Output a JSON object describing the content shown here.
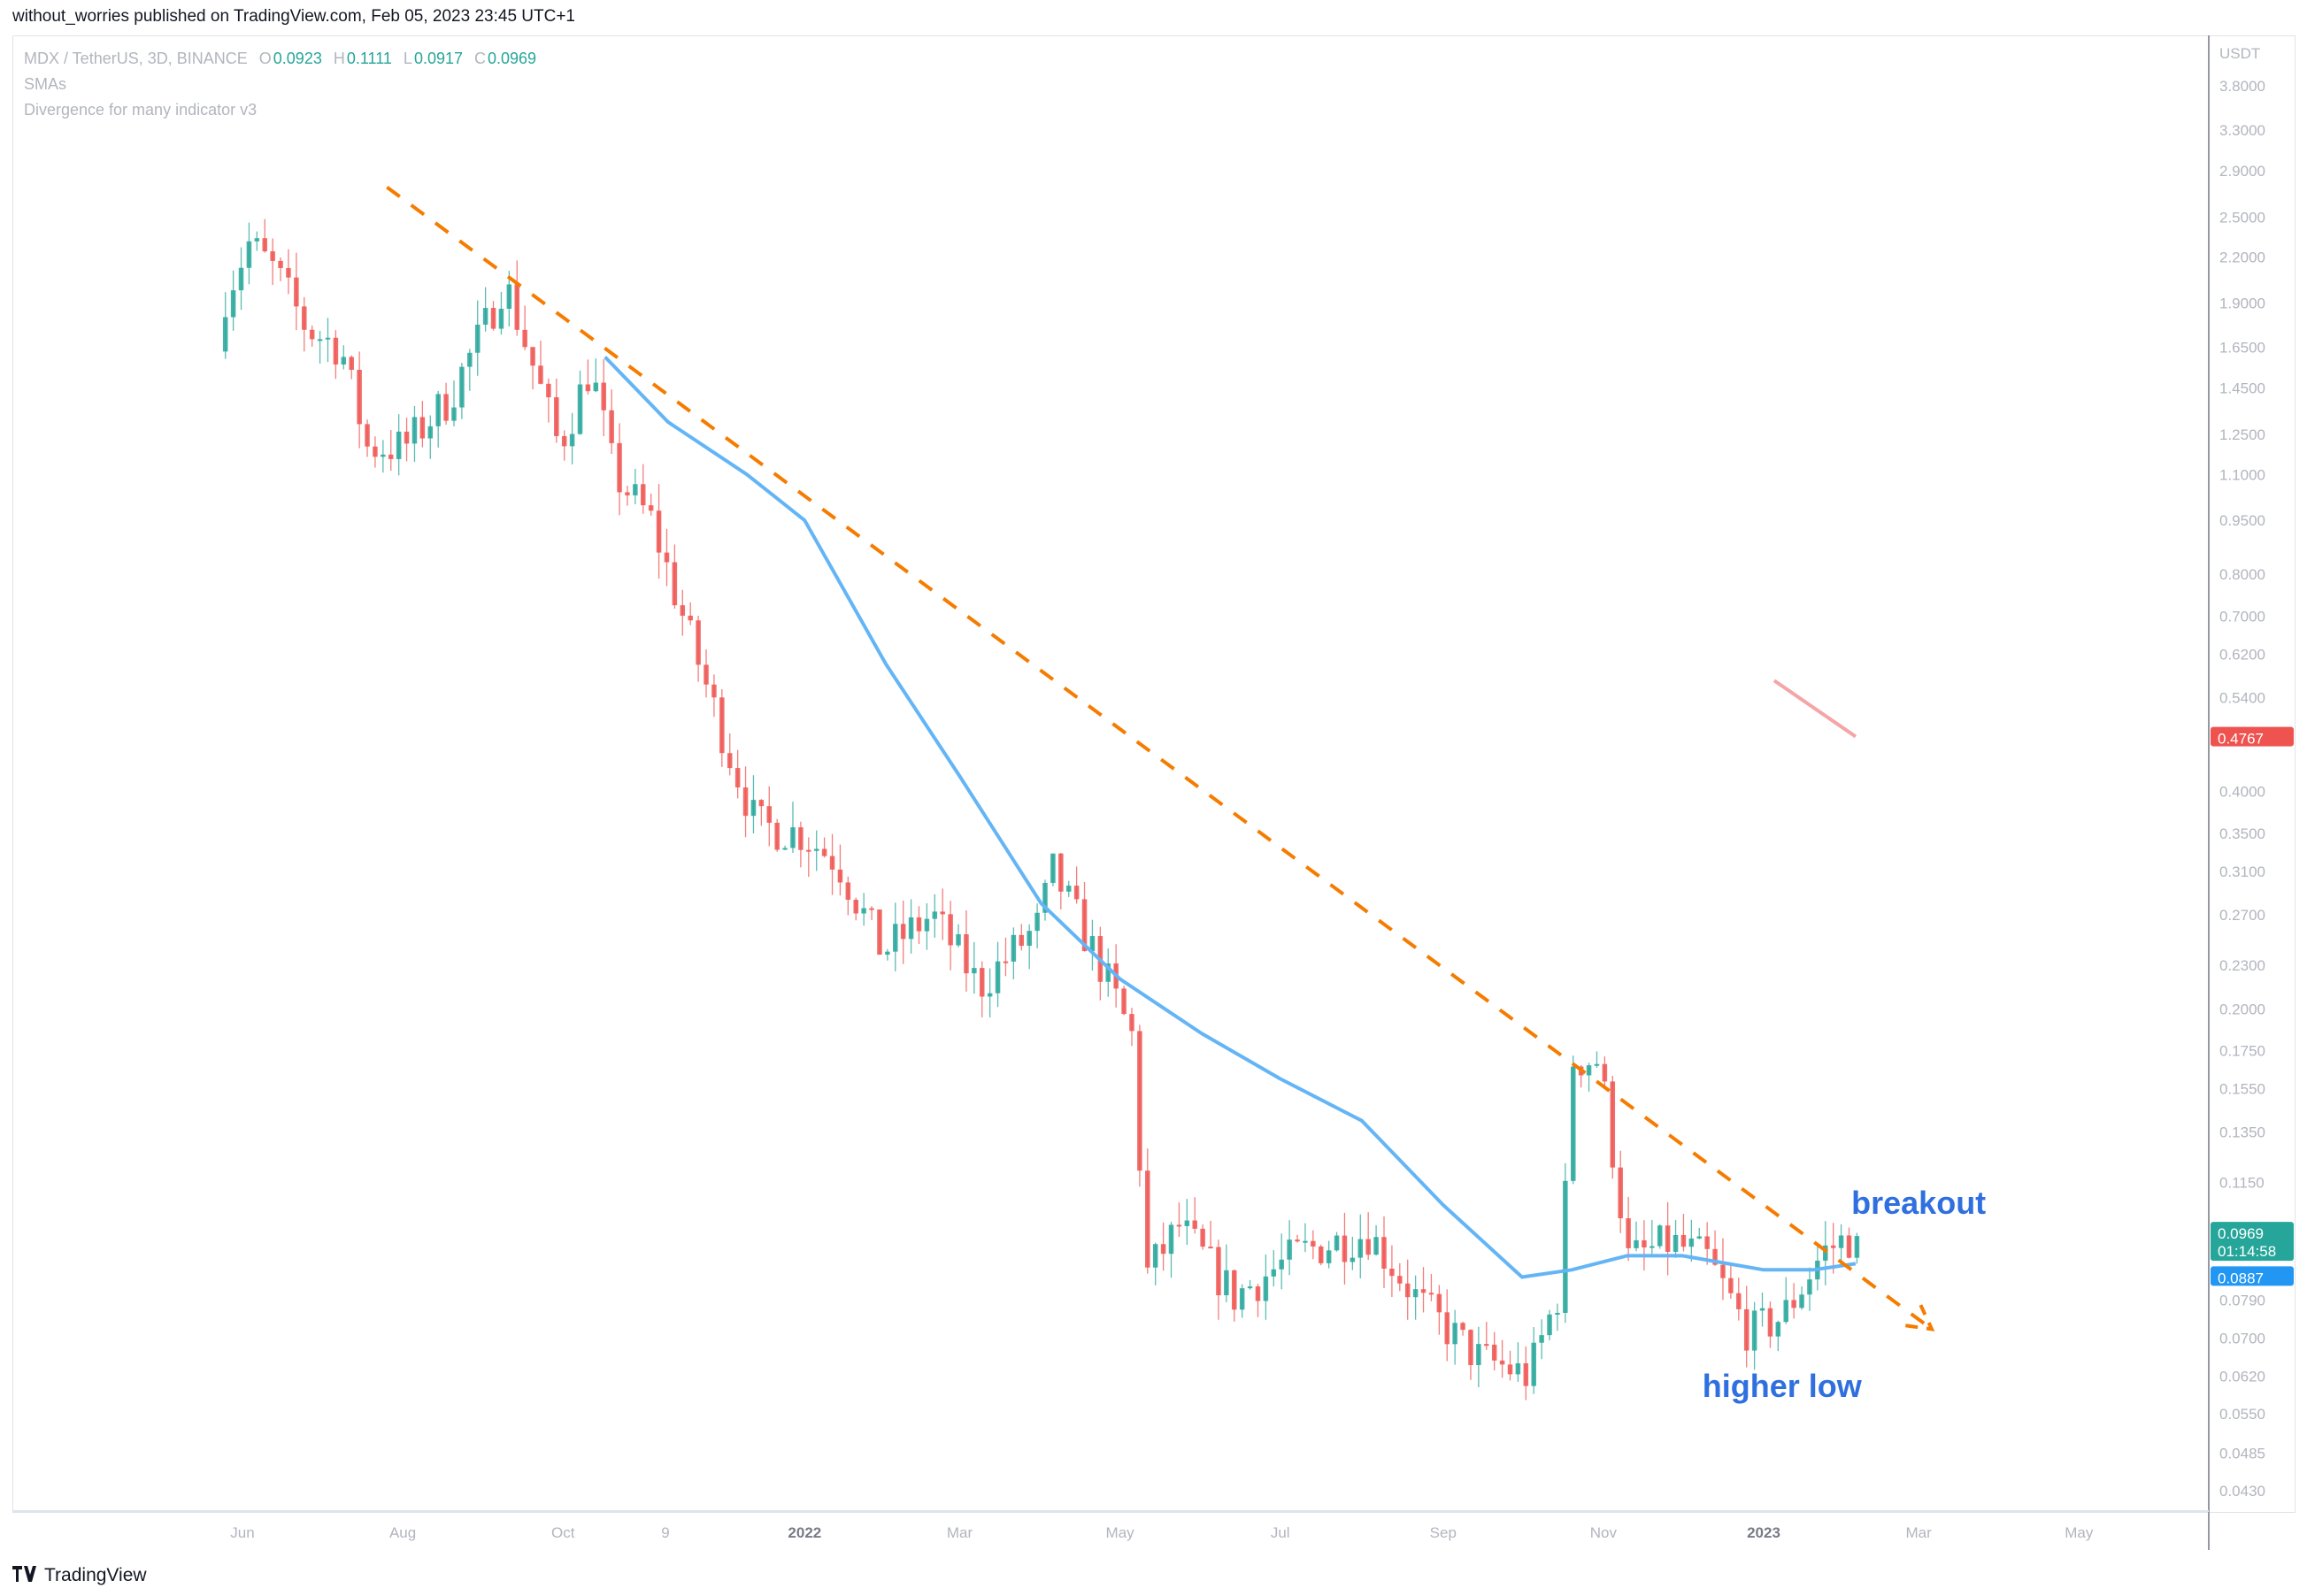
{
  "header": {
    "published_line": "without_worries published on TradingView.com, Feb 05, 2023 23:45 UTC+1"
  },
  "legend": {
    "symbol": "MDX / TetherUS, 3D, BINANCE",
    "ohlc": [
      {
        "key": "O",
        "value": "0.0923"
      },
      {
        "key": "H",
        "value": "0.1111"
      },
      {
        "key": "L",
        "value": "0.0917"
      },
      {
        "key": "C",
        "value": "0.0969"
      }
    ],
    "indicator_1": "SMAs",
    "indicator_2": "Divergence for many indicator v3"
  },
  "footer": {
    "brand": "TradingView",
    "logo_icon": "tradingview-logo-icon"
  },
  "colors": {
    "up": "#26a69a",
    "down": "#ef5350",
    "sma": "#64b5f6",
    "trendline": "#f57c00",
    "annotation": "#2962ff",
    "axis_text": "#b2b5be"
  },
  "chart_data": {
    "type": "candlestick",
    "symbol": "MDX / TetherUS",
    "timeframe": "3D",
    "exchange": "BINANCE",
    "y_scale": "log",
    "y_unit": "USDT",
    "ylim": [
      0.04,
      4.3
    ],
    "y_ticks": [
      "3.8000",
      "3.3000",
      "2.9000",
      "2.5000",
      "2.2000",
      "1.9000",
      "1.6500",
      "1.4500",
      "1.2500",
      "1.1000",
      "0.9500",
      "0.8000",
      "0.7000",
      "0.6200",
      "0.5400",
      "0.4000",
      "0.3500",
      "0.3100",
      "0.2700",
      "0.2300",
      "0.2000",
      "0.1750",
      "0.1550",
      "0.1350",
      "0.1150",
      "0.0790",
      "0.0700",
      "0.0620",
      "0.0550",
      "0.0485",
      "0.0430"
    ],
    "x_ticks": [
      "Jun",
      "Aug",
      "Oct",
      "9",
      "2022",
      "Mar",
      "May",
      "Jul",
      "Sep",
      "Nov",
      "2023",
      "Mar",
      "May"
    ],
    "x_tick_dates": [
      "2021-06-01",
      "2021-08-01",
      "2021-10-01",
      "2021-11-09",
      "2022-01-01",
      "2022-03-01",
      "2022-05-01",
      "2022-07-01",
      "2022-09-01",
      "2022-11-01",
      "2023-01-01",
      "2023-03-01",
      "2023-05-01"
    ],
    "price_labels": {
      "last": "0.0969",
      "countdown": "01:14:58",
      "sma": "0.0887",
      "divergence": "0.4767"
    },
    "price_label_values": {
      "last": 0.0969,
      "sma": 0.0887,
      "divergence": 0.4767
    },
    "anchors": [
      {
        "date": "2021-05-24",
        "price": 1.85
      },
      {
        "date": "2021-06-05",
        "price": 2.3
      },
      {
        "date": "2021-06-15",
        "price": 2.1
      },
      {
        "date": "2021-06-27",
        "price": 1.75
      },
      {
        "date": "2021-07-10",
        "price": 1.65
      },
      {
        "date": "2021-07-20",
        "price": 1.2
      },
      {
        "date": "2021-08-03",
        "price": 1.2
      },
      {
        "date": "2021-08-20",
        "price": 1.4
      },
      {
        "date": "2021-09-04",
        "price": 1.8
      },
      {
        "date": "2021-09-10",
        "price": 2.05
      },
      {
        "date": "2021-09-20",
        "price": 1.6
      },
      {
        "date": "2021-10-01",
        "price": 1.2
      },
      {
        "date": "2021-10-13",
        "price": 1.55
      },
      {
        "date": "2021-10-22",
        "price": 1.1
      },
      {
        "date": "2021-11-05",
        "price": 0.95
      },
      {
        "date": "2021-11-20",
        "price": 0.65
      },
      {
        "date": "2021-12-05",
        "price": 0.45
      },
      {
        "date": "2021-12-15",
        "price": 0.36
      },
      {
        "date": "2022-01-01",
        "price": 0.35
      },
      {
        "date": "2022-01-15",
        "price": 0.32
      },
      {
        "date": "2022-02-01",
        "price": 0.24
      },
      {
        "date": "2022-02-20",
        "price": 0.27
      },
      {
        "date": "2022-03-10",
        "price": 0.215
      },
      {
        "date": "2022-04-01",
        "price": 0.26
      },
      {
        "date": "2022-04-07",
        "price": 0.31
      },
      {
        "date": "2022-04-25",
        "price": 0.23
      },
      {
        "date": "2022-05-08",
        "price": 0.18
      },
      {
        "date": "2022-05-12",
        "price": 0.085
      },
      {
        "date": "2022-05-25",
        "price": 0.1
      },
      {
        "date": "2022-06-15",
        "price": 0.08
      },
      {
        "date": "2022-07-10",
        "price": 0.092
      },
      {
        "date": "2022-08-05",
        "price": 0.098
      },
      {
        "date": "2022-08-25",
        "price": 0.078
      },
      {
        "date": "2022-09-15",
        "price": 0.066
      },
      {
        "date": "2022-10-05",
        "price": 0.062
      },
      {
        "date": "2022-10-17",
        "price": 0.082
      },
      {
        "date": "2022-10-22",
        "price": 0.17
      },
      {
        "date": "2022-11-01",
        "price": 0.17
      },
      {
        "date": "2022-11-12",
        "price": 0.09
      },
      {
        "date": "2022-11-28",
        "price": 0.095
      },
      {
        "date": "2022-12-12",
        "price": 0.09
      },
      {
        "date": "2022-12-28",
        "price": 0.071
      },
      {
        "date": "2023-01-10",
        "price": 0.075
      },
      {
        "date": "2023-01-25",
        "price": 0.092
      },
      {
        "date": "2023-02-05",
        "price": 0.0969
      }
    ],
    "sma_line": [
      {
        "date": "2021-10-17",
        "price": 1.6
      },
      {
        "date": "2021-11-10",
        "price": 1.3
      },
      {
        "date": "2021-12-10",
        "price": 1.1
      },
      {
        "date": "2022-01-01",
        "price": 0.95
      },
      {
        "date": "2022-02-01",
        "price": 0.6
      },
      {
        "date": "2022-03-01",
        "price": 0.42
      },
      {
        "date": "2022-04-01",
        "price": 0.28
      },
      {
        "date": "2022-05-01",
        "price": 0.22
      },
      {
        "date": "2022-06-01",
        "price": 0.185
      },
      {
        "date": "2022-07-01",
        "price": 0.16
      },
      {
        "date": "2022-08-01",
        "price": 0.14
      },
      {
        "date": "2022-09-01",
        "price": 0.107
      },
      {
        "date": "2022-10-01",
        "price": 0.085
      },
      {
        "date": "2022-10-20",
        "price": 0.087
      },
      {
        "date": "2022-11-10",
        "price": 0.091
      },
      {
        "date": "2022-12-01",
        "price": 0.091
      },
      {
        "date": "2023-01-01",
        "price": 0.087
      },
      {
        "date": "2023-01-20",
        "price": 0.087
      },
      {
        "date": "2023-02-05",
        "price": 0.0887
      }
    ],
    "trendline": {
      "start": {
        "date": "2021-07-26",
        "price": 2.75
      },
      "end": {
        "date": "2023-03-06",
        "price": 0.072
      },
      "style": "dashed"
    },
    "divergence_line": {
      "start": {
        "date": "2023-01-05",
        "price": 0.57
      },
      "end": {
        "date": "2023-02-05",
        "price": 0.4767
      }
    },
    "annotations": [
      {
        "text": "breakout",
        "date": "2023-03-01",
        "price": 0.104
      },
      {
        "text": "higher low",
        "date": "2023-01-08",
        "price": 0.058
      }
    ]
  }
}
